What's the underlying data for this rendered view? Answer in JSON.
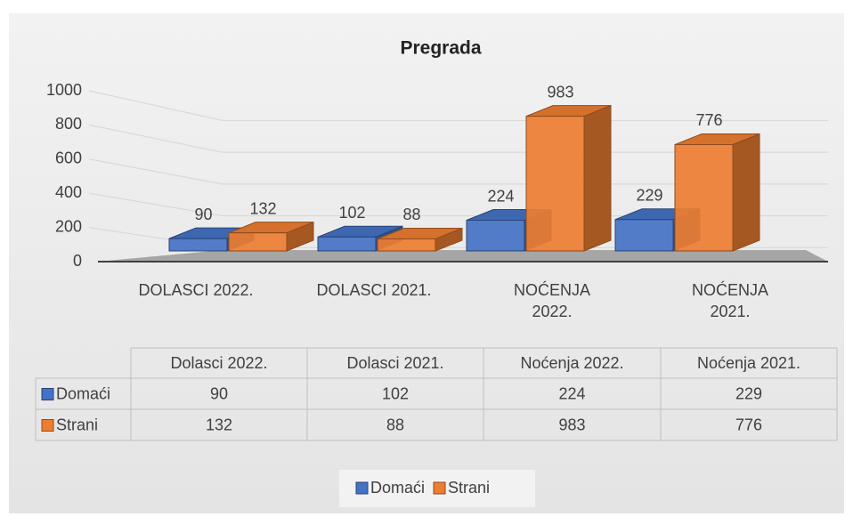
{
  "chart_data": {
    "type": "bar3d",
    "title": "Pregrada",
    "categories": [
      "DOLASCI 2022.",
      "DOLASCI 2021.",
      "NOĆENJA 2022.",
      "NOĆENJA 2021."
    ],
    "series": [
      {
        "name": "Domaći",
        "color": "#4472c4",
        "values": [
          90,
          102,
          224,
          229
        ]
      },
      {
        "name": "Strani",
        "color": "#ed7d31",
        "values": [
          132,
          88,
          983,
          776
        ]
      }
    ],
    "ylim": [
      0,
      1000
    ],
    "yticks": [
      0,
      200,
      400,
      600,
      800,
      1000
    ],
    "grid": true,
    "data_table": {
      "columns": [
        "Dolasci 2022.",
        "Dolasci 2021.",
        "Noćenja 2022.",
        "Noćenja 2021."
      ]
    },
    "legend": "bottom"
  }
}
